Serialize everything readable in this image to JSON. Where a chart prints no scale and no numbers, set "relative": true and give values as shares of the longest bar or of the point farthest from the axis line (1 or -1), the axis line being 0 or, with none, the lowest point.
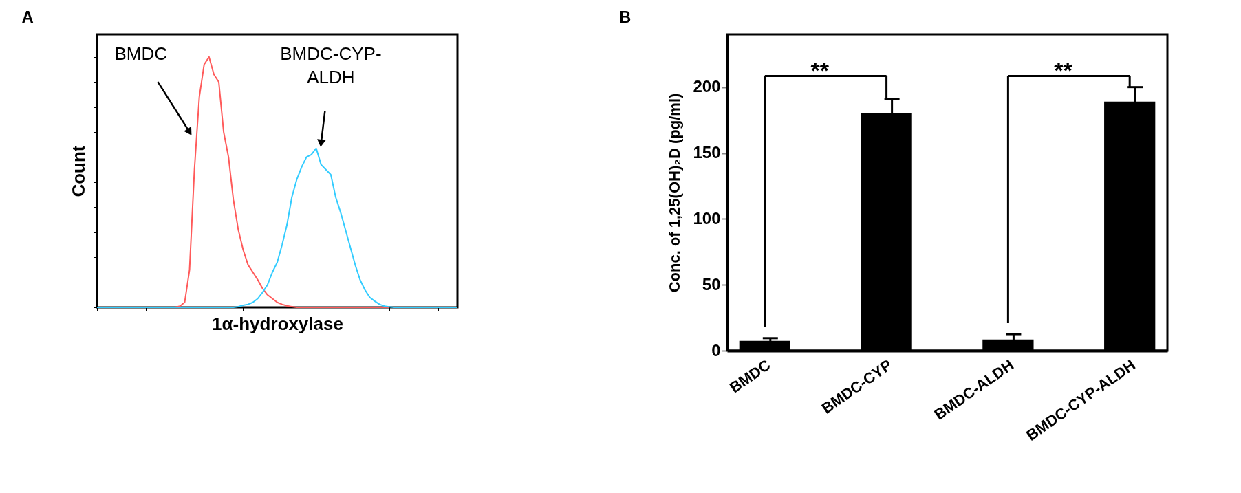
{
  "chart_data": [
    {
      "type": "line",
      "title": "A",
      "xlabel": "1α-hydroxylase",
      "ylabel": "Count",
      "relative": true,
      "tick_labels": false,
      "categories": [
        null,
        null,
        null,
        null,
        null,
        null,
        null,
        null,
        null,
        null,
        null,
        null,
        null,
        null,
        null,
        null,
        null,
        null,
        null,
        null,
        null,
        null,
        null,
        null,
        null,
        null,
        null,
        null,
        null,
        null,
        null,
        null,
        null,
        null,
        null,
        null,
        null,
        null,
        null,
        null,
        null,
        null,
        null,
        null,
        null,
        null,
        null,
        null,
        null,
        null,
        null,
        null,
        null,
        null,
        null,
        null,
        null,
        null,
        null,
        null,
        null,
        null,
        null,
        null,
        null,
        null,
        null,
        null,
        null,
        null,
        null,
        null,
        null,
        null,
        null
      ],
      "series": [
        {
          "color": "#ff5a5a",
          "values": [
            null,
            null,
            null,
            null,
            null,
            null,
            null,
            null,
            null,
            null,
            null,
            null,
            null,
            null,
            null,
            0,
            0,
            0.005,
            0.02,
            0.15,
            0.55,
            0.84,
            0.97,
            1,
            0.93,
            0.9,
            0.7,
            0.6,
            0.43,
            0.31,
            0.23,
            0.17,
            0.14,
            0.11,
            0.075,
            0.05,
            0.035,
            0.02,
            0.012,
            0.006,
            0.003,
            0,
            0,
            0,
            0,
            0,
            0,
            0,
            0,
            0,
            0,
            0,
            0,
            0,
            0,
            0,
            0,
            0,
            0,
            0,
            0,
            null,
            null,
            null,
            null,
            null,
            null,
            null,
            null,
            null,
            null,
            null,
            null,
            null,
            null
          ]
        },
        {
          "color": "#33ccff",
          "values": [
            0,
            0,
            0,
            0,
            0,
            0,
            0,
            0,
            0,
            0,
            0,
            0,
            0,
            0,
            0,
            0,
            0,
            0,
            0,
            0,
            0,
            0,
            0,
            0,
            0,
            0,
            0,
            0,
            0,
            0.003,
            0.008,
            0.012,
            0.02,
            0.035,
            0.06,
            0.09,
            0.14,
            0.18,
            0.25,
            0.33,
            0.44,
            0.51,
            0.56,
            0.6,
            0.61,
            0.635,
            0.57,
            0.55,
            0.53,
            0.44,
            0.38,
            0.31,
            0.24,
            0.17,
            0.11,
            0.07,
            0.04,
            0.025,
            0.012,
            0.005,
            0.002,
            0,
            0,
            0,
            0,
            0,
            0,
            0,
            0,
            0,
            0,
            0,
            0,
            0,
            0
          ]
        }
      ],
      "annotations": [
        "BMDC",
        "BMDC-CYP-ALDH"
      ]
    },
    {
      "type": "bar",
      "title": "B",
      "ylabel": "Conc. of 1,25(OH)₂D (pg/ml)",
      "categories": [
        "BMDC",
        "BMDC-CYP",
        "BMDC-ALDH",
        "BMDC-CYP-ALDH"
      ],
      "values": [
        7.5,
        180,
        8.5,
        189
      ],
      "errors": [
        2,
        11,
        4,
        11
      ],
      "color": "#000000",
      "ylim": [
        0,
        240
      ],
      "yticks": [
        0,
        50,
        100,
        150,
        200
      ],
      "annotations": [
        "**",
        "**"
      ]
    }
  ]
}
